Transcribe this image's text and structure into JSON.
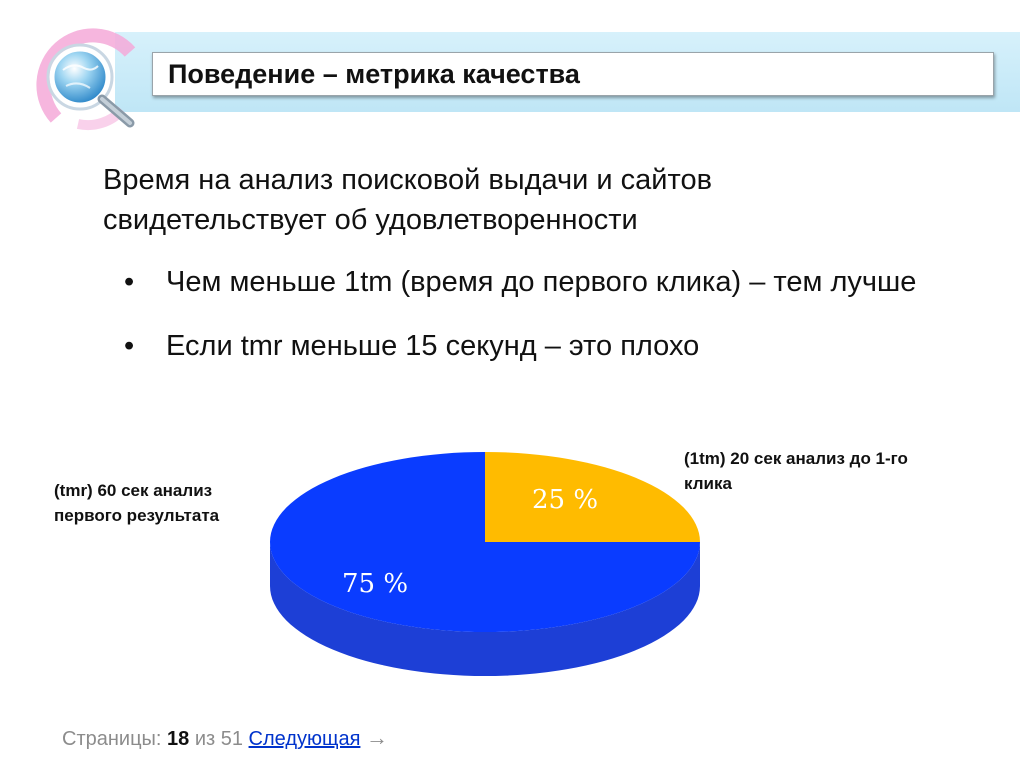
{
  "header": {
    "title": "Поведение – метрика качества"
  },
  "colors": {
    "header_band": "#c8ebf8",
    "accent_pink": "#f4a9d8",
    "slice_blue": "#0a3cff",
    "slice_blue_side": "#1d3fd6",
    "slice_gold": "#ffbb00",
    "slice_gold_side": "#d89a00"
  },
  "content": {
    "intro": "Время на анализ поисковой выдачи и сайтов свидетельствует об удовлетворенности",
    "bullet_symbol": "•",
    "bullets": [
      "Чем меньше 1tm (время до первого клика) – тем лучше",
      "Если tmr меньше 15 секунд – это плохо"
    ]
  },
  "chart_data": {
    "type": "pie",
    "style": "3d",
    "slices": [
      {
        "label": "(1tm) 20 сек анализ до 1-го клика",
        "value": 25,
        "display": "25 %"
      },
      {
        "label": "(tmr) 60 сек анализ первого результата",
        "value": 75,
        "display": "75 %"
      }
    ]
  },
  "footer": {
    "pages_label": "Страницы:",
    "current_page": "18",
    "of_label": "из",
    "total_pages": "51",
    "next_label": "Следующая",
    "next_arrow": "→"
  }
}
